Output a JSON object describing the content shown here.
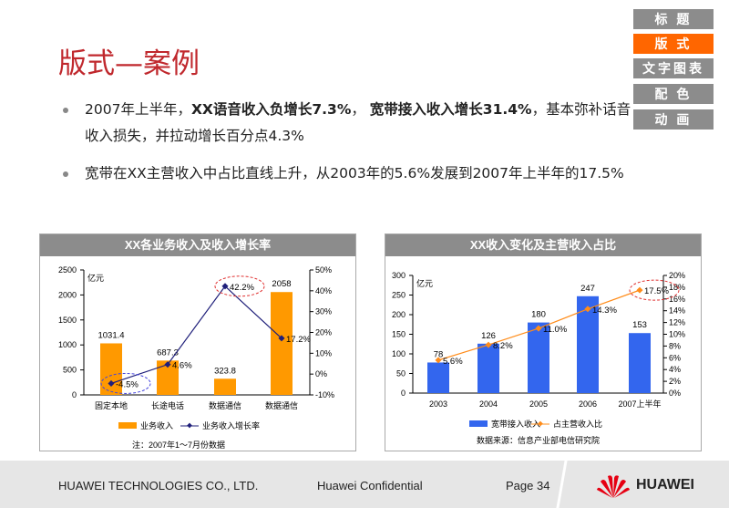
{
  "title": "版式—案例",
  "nav": [
    "标 题",
    "版 式",
    "文字图表",
    "配 色",
    "动 画"
  ],
  "bullets": [
    {
      "parts": [
        [
          "2007年上半年，",
          false
        ],
        [
          "XX语音收入负增长7.3%",
          true
        ],
        [
          "， ",
          false
        ],
        [
          "宽带接入收入增长31.4%",
          true
        ],
        [
          "，基本弥补话音收入损失，并拉动增长百分点4.3%",
          false
        ]
      ]
    },
    {
      "parts": [
        [
          "宽带在XX主营收入中占比直线上升，从2003年的5.6%发展到2007年上半年的17.5%",
          false
        ]
      ]
    }
  ],
  "bullet_texts": [
    "2007年上半年，XX语音收入负增长7.3%， 宽带接入收入增长31.4%，基本弥补话音收入损失，并拉动增长百分点4.3%",
    "宽带在XX主营收入中占比直线上升，从2003年的5.6%发展到2007年上半年的17.5%"
  ],
  "chart_data": [
    {
      "type": "bar",
      "title": "XX各业务收入及收入增长率",
      "unit": "亿元",
      "categories": [
        "固定本地",
        "长途电话",
        "数据通信",
        "数据通信"
      ],
      "series": [
        {
          "name": "业务收入",
          "type": "bar",
          "values": [
            1031.4,
            687.3,
            323.8,
            2058
          ],
          "labels": [
            "1031.4",
            "687.3",
            "323.8",
            "2058"
          ],
          "color": "#ff9900"
        },
        {
          "name": "业务收入增长率",
          "type": "line",
          "axis": "right",
          "values": [
            -4.5,
            4.6,
            42.2,
            17.2
          ],
          "labels": [
            "-4.5%",
            "4.6%",
            "42.2%",
            "17.2%"
          ],
          "color": "#1f1f7a"
        }
      ],
      "ylim": [
        0,
        2500
      ],
      "yticks": [
        "0",
        "500",
        "1000",
        "1500",
        "2000",
        "2500"
      ],
      "y2lim": [
        -10,
        50
      ],
      "y2ticks": [
        "-10%",
        "0%",
        "10%",
        "20%",
        "30%",
        "40%",
        "50%"
      ],
      "note": "注：2007年1～7月份数据"
    },
    {
      "type": "bar",
      "title": "XX收入变化及主营收入占比",
      "unit": "亿元",
      "categories": [
        "2003",
        "2004",
        "2005",
        "2006",
        "2007上半年"
      ],
      "series": [
        {
          "name": "宽带接入收入",
          "type": "bar",
          "values": [
            78,
            126,
            180,
            247,
            153
          ],
          "labels": [
            "78",
            "126",
            "180",
            "247",
            "153"
          ],
          "color": "#3366ee"
        },
        {
          "name": "占主营收入比",
          "type": "line",
          "axis": "right",
          "values": [
            5.6,
            8.2,
            11.0,
            14.3,
            17.5
          ],
          "labels": [
            "5.6%",
            "8.2%",
            "11.0%",
            "14.3%",
            "17.5%"
          ],
          "color": "#ff8c1a"
        }
      ],
      "ylim": [
        0,
        300
      ],
      "yticks": [
        "0",
        "50",
        "100",
        "150",
        "200",
        "250",
        "300"
      ],
      "y2lim": [
        0,
        20
      ],
      "y2ticks": [
        "0%",
        "2%",
        "4%",
        "6%",
        "8%",
        "10%",
        "12%",
        "14%",
        "16%",
        "18%",
        "20%"
      ],
      "note": "数据来源：信息产业部电信研究院"
    }
  ],
  "footer": {
    "company": "HUAWEI TECHNOLOGIES CO., LTD.",
    "confidential": "Huawei Confidential",
    "page": "Page 34",
    "logo": "HUAWEI"
  }
}
